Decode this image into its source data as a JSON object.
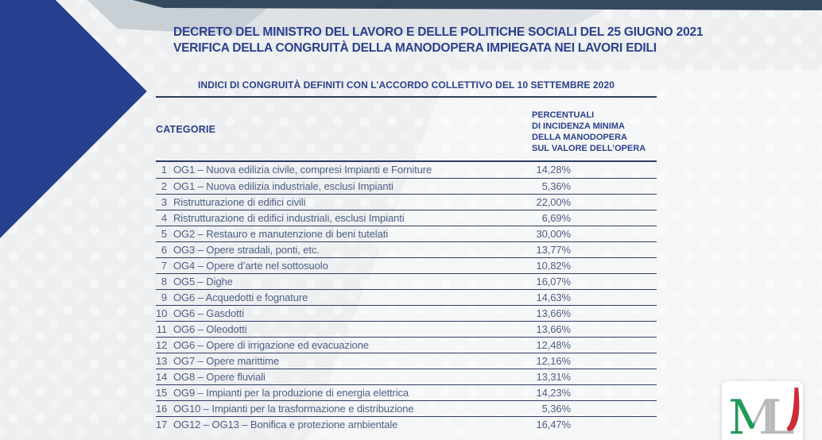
{
  "header": {
    "title_line1": "DECRETO DEL MINISTRO DEL LAVORO E DELLE POLITICHE SOCIALI DEL 25 GIUGNO 2021",
    "title_line2": "VERIFICA DELLA CONGRUITÀ DELLA MANODOPERA IMPIEGATA NEI LAVORI EDILI",
    "subtitle": "INDICI DI CONGRUITÀ DEFINITI CON L’ACCORDO COLLETTIVO DEL 10 SETTEMBRE 2020"
  },
  "table": {
    "col_categorie": "CATEGORIE",
    "col_percentuali_lines": [
      "PERCENTUALI",
      "DI INCIDENZA MINIMA",
      "DELLA MANODOPERA",
      "SUL VALORE DELL’OPERA"
    ],
    "rows": [
      {
        "n": "1",
        "desc": "OG1 – Nuova edilizia civile, compresi Impianti e Forniture",
        "pct": "14,28%"
      },
      {
        "n": "2",
        "desc": "OG1 – Nuova edilizia industriale, esclusi Impianti",
        "pct": "5,36%"
      },
      {
        "n": "3",
        "desc": "Ristrutturazione di edifici civili",
        "pct": "22,00%"
      },
      {
        "n": "4",
        "desc": "Ristrutturazione di edifici industriali, esclusi Impianti",
        "pct": "6,69%"
      },
      {
        "n": "5",
        "desc": "OG2 – Restauro e manutenzione di beni tutelati",
        "pct": "30,00%"
      },
      {
        "n": "6",
        "desc": "OG3 – Opere stradali, ponti, etc.",
        "pct": "13,77%"
      },
      {
        "n": "7",
        "desc": "OG4 – Opere d’arte nel sottosuolo",
        "pct": "10,82%"
      },
      {
        "n": "8",
        "desc": "OG5 – Dighe",
        "pct": "16,07%"
      },
      {
        "n": "9",
        "desc": "OG6 – Acquedotti e fognature",
        "pct": "14,63%"
      },
      {
        "n": "10",
        "desc": "OG6 – Gasdotti",
        "pct": "13,66%"
      },
      {
        "n": "11",
        "desc": "OG6 – Oleodotti",
        "pct": "13,66%"
      },
      {
        "n": "12",
        "desc": "OG6 – Opere di irrigazione ed evacuazione",
        "pct": "12,48%"
      },
      {
        "n": "13",
        "desc": "OG7 – Opere marittime",
        "pct": "12,16%"
      },
      {
        "n": "14",
        "desc": "OG8 – Opere fluviali",
        "pct": "13,31%"
      },
      {
        "n": "15",
        "desc": "OG9 – Impianti per la produzione di energia elettrica",
        "pct": "14,23%"
      },
      {
        "n": "16",
        "desc": "OG10 – Impianti per la trasformazione e distribuzione",
        "pct": "5,36%"
      },
      {
        "n": "17",
        "desc": "OG12 – OG13 – Bonifica e protezione ambientale",
        "pct": "16,47%"
      }
    ]
  },
  "logo": {
    "letter_m": "M",
    "letter_l": "L",
    "green": "#219a57",
    "gray": "#b6babd",
    "red": "#ce2b37"
  },
  "colors": {
    "title_blue": "#2b3f90",
    "row_text_blue": "#4e5e86",
    "rule_navy": "#2e3c63",
    "diamond_blue": "#263f8e",
    "top_band_navy": "#35495e",
    "background_gray": "#edeff1"
  }
}
